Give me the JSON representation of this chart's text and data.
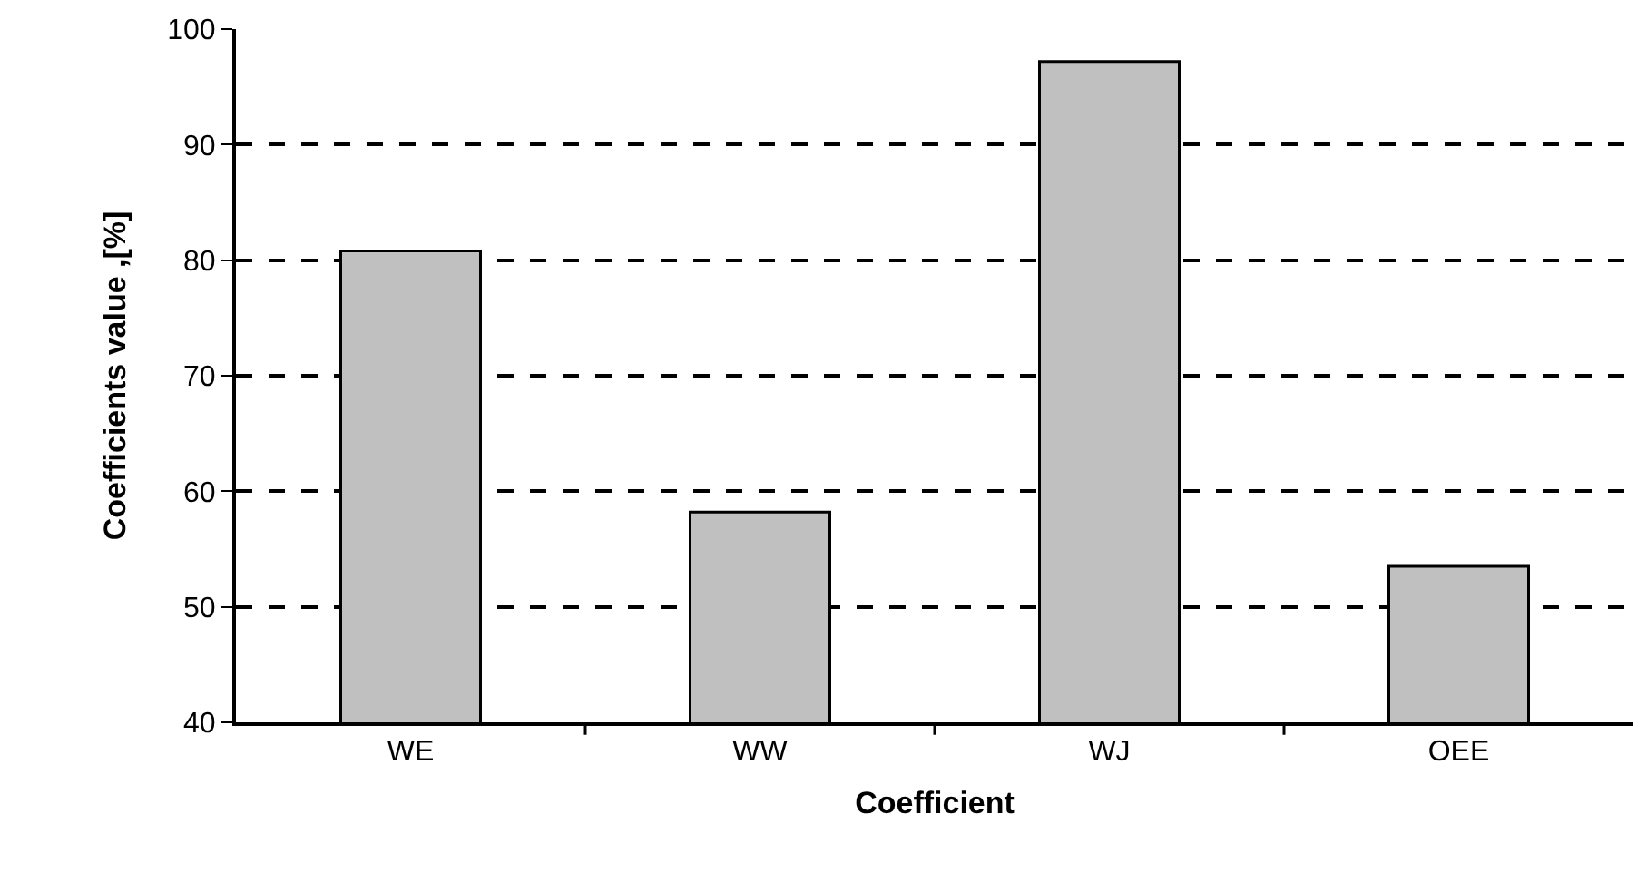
{
  "chart_data": {
    "type": "bar",
    "xlabel": "Coefficient",
    "ylabel": "Coefficients value ,[%]",
    "categories": [
      "WE",
      "WW",
      "WJ",
      "OEE"
    ],
    "values": [
      80.8,
      58.2,
      97.2,
      53.5
    ],
    "color": "#c0c0c0",
    "ylim": [
      40,
      100
    ],
    "yticks": [
      40,
      50,
      60,
      70,
      80,
      90,
      100
    ],
    "grid": "y",
    "line_style": "dashed"
  }
}
